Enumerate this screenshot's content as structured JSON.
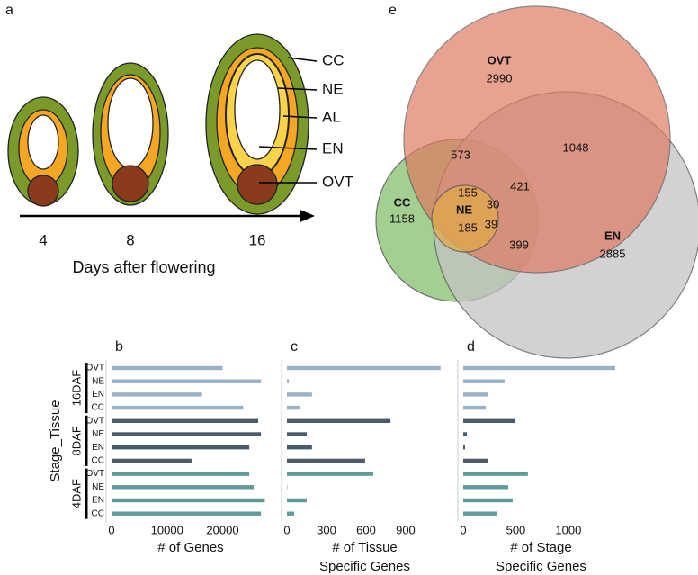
{
  "panel_a": {
    "label": "a",
    "layers": [
      "CC",
      "NE",
      "AL",
      "EN",
      "OVT"
    ],
    "days": [
      "4",
      "8",
      "16"
    ],
    "xlabel": "Days after flowering"
  },
  "panel_e": {
    "label": "e",
    "sets": [
      {
        "name": "OVT",
        "count": "2990"
      },
      {
        "name": "CC",
        "count": "1158"
      },
      {
        "name": "EN",
        "count": "2885"
      },
      {
        "name": "NE"
      }
    ],
    "regions": [
      "573",
      "1048",
      "155",
      "421",
      "30",
      "185",
      "39",
      "399"
    ]
  },
  "chart_data": [
    {
      "type": "bar",
      "panel_label": "b",
      "ylabel": "Stage_Tissue",
      "categories": [
        "OVT",
        "NE",
        "EN",
        "CC"
      ],
      "xlabel": [
        "# of Genes"
      ],
      "xlim": [
        0,
        28500
      ],
      "xticks": [
        0,
        10000,
        20000
      ],
      "series": [
        {
          "name": "16DAF",
          "color": "#9bb1c9",
          "values": [
            20000,
            26900,
            16300,
            23700
          ]
        },
        {
          "name": "8DAF",
          "color": "#4b5a6d",
          "values": [
            26400,
            26900,
            24800,
            14400
          ]
        },
        {
          "name": "4DAF",
          "color": "#5f9b98",
          "values": [
            24800,
            25600,
            27600,
            26900
          ]
        }
      ]
    },
    {
      "type": "bar",
      "panel_label": "c",
      "xlabel": [
        "# of Tissue",
        "Specific Genes"
      ],
      "xlim": [
        0,
        1180
      ],
      "xticks": [
        0,
        300,
        600,
        900
      ],
      "series": [
        {
          "name": "16DAF",
          "color": "#9bb1c9",
          "values": [
            1165,
            14,
            190,
            95
          ]
        },
        {
          "name": "8DAF",
          "color": "#4b5a6d",
          "values": [
            785,
            150,
            190,
            593
          ]
        },
        {
          "name": "4DAF",
          "color": "#5f9b98",
          "values": [
            655,
            3,
            150,
            55
          ]
        }
      ]
    },
    {
      "type": "bar",
      "panel_label": "d",
      "xlabel": [
        "# of Stage",
        "Specific Genes"
      ],
      "xlim": [
        0,
        1480
      ],
      "xticks": [
        0,
        500,
        1000
      ],
      "series": [
        {
          "name": "16DAF",
          "color": "#9bb1c9",
          "values": [
            1445,
            393,
            240,
            214
          ]
        },
        {
          "name": "8DAF",
          "color": "#4b5a6d",
          "values": [
            496,
            34,
            17,
            231
          ]
        },
        {
          "name": "4DAF",
          "color": "#5f9b98",
          "values": [
            615,
            427,
            470,
            325
          ]
        }
      ]
    }
  ]
}
